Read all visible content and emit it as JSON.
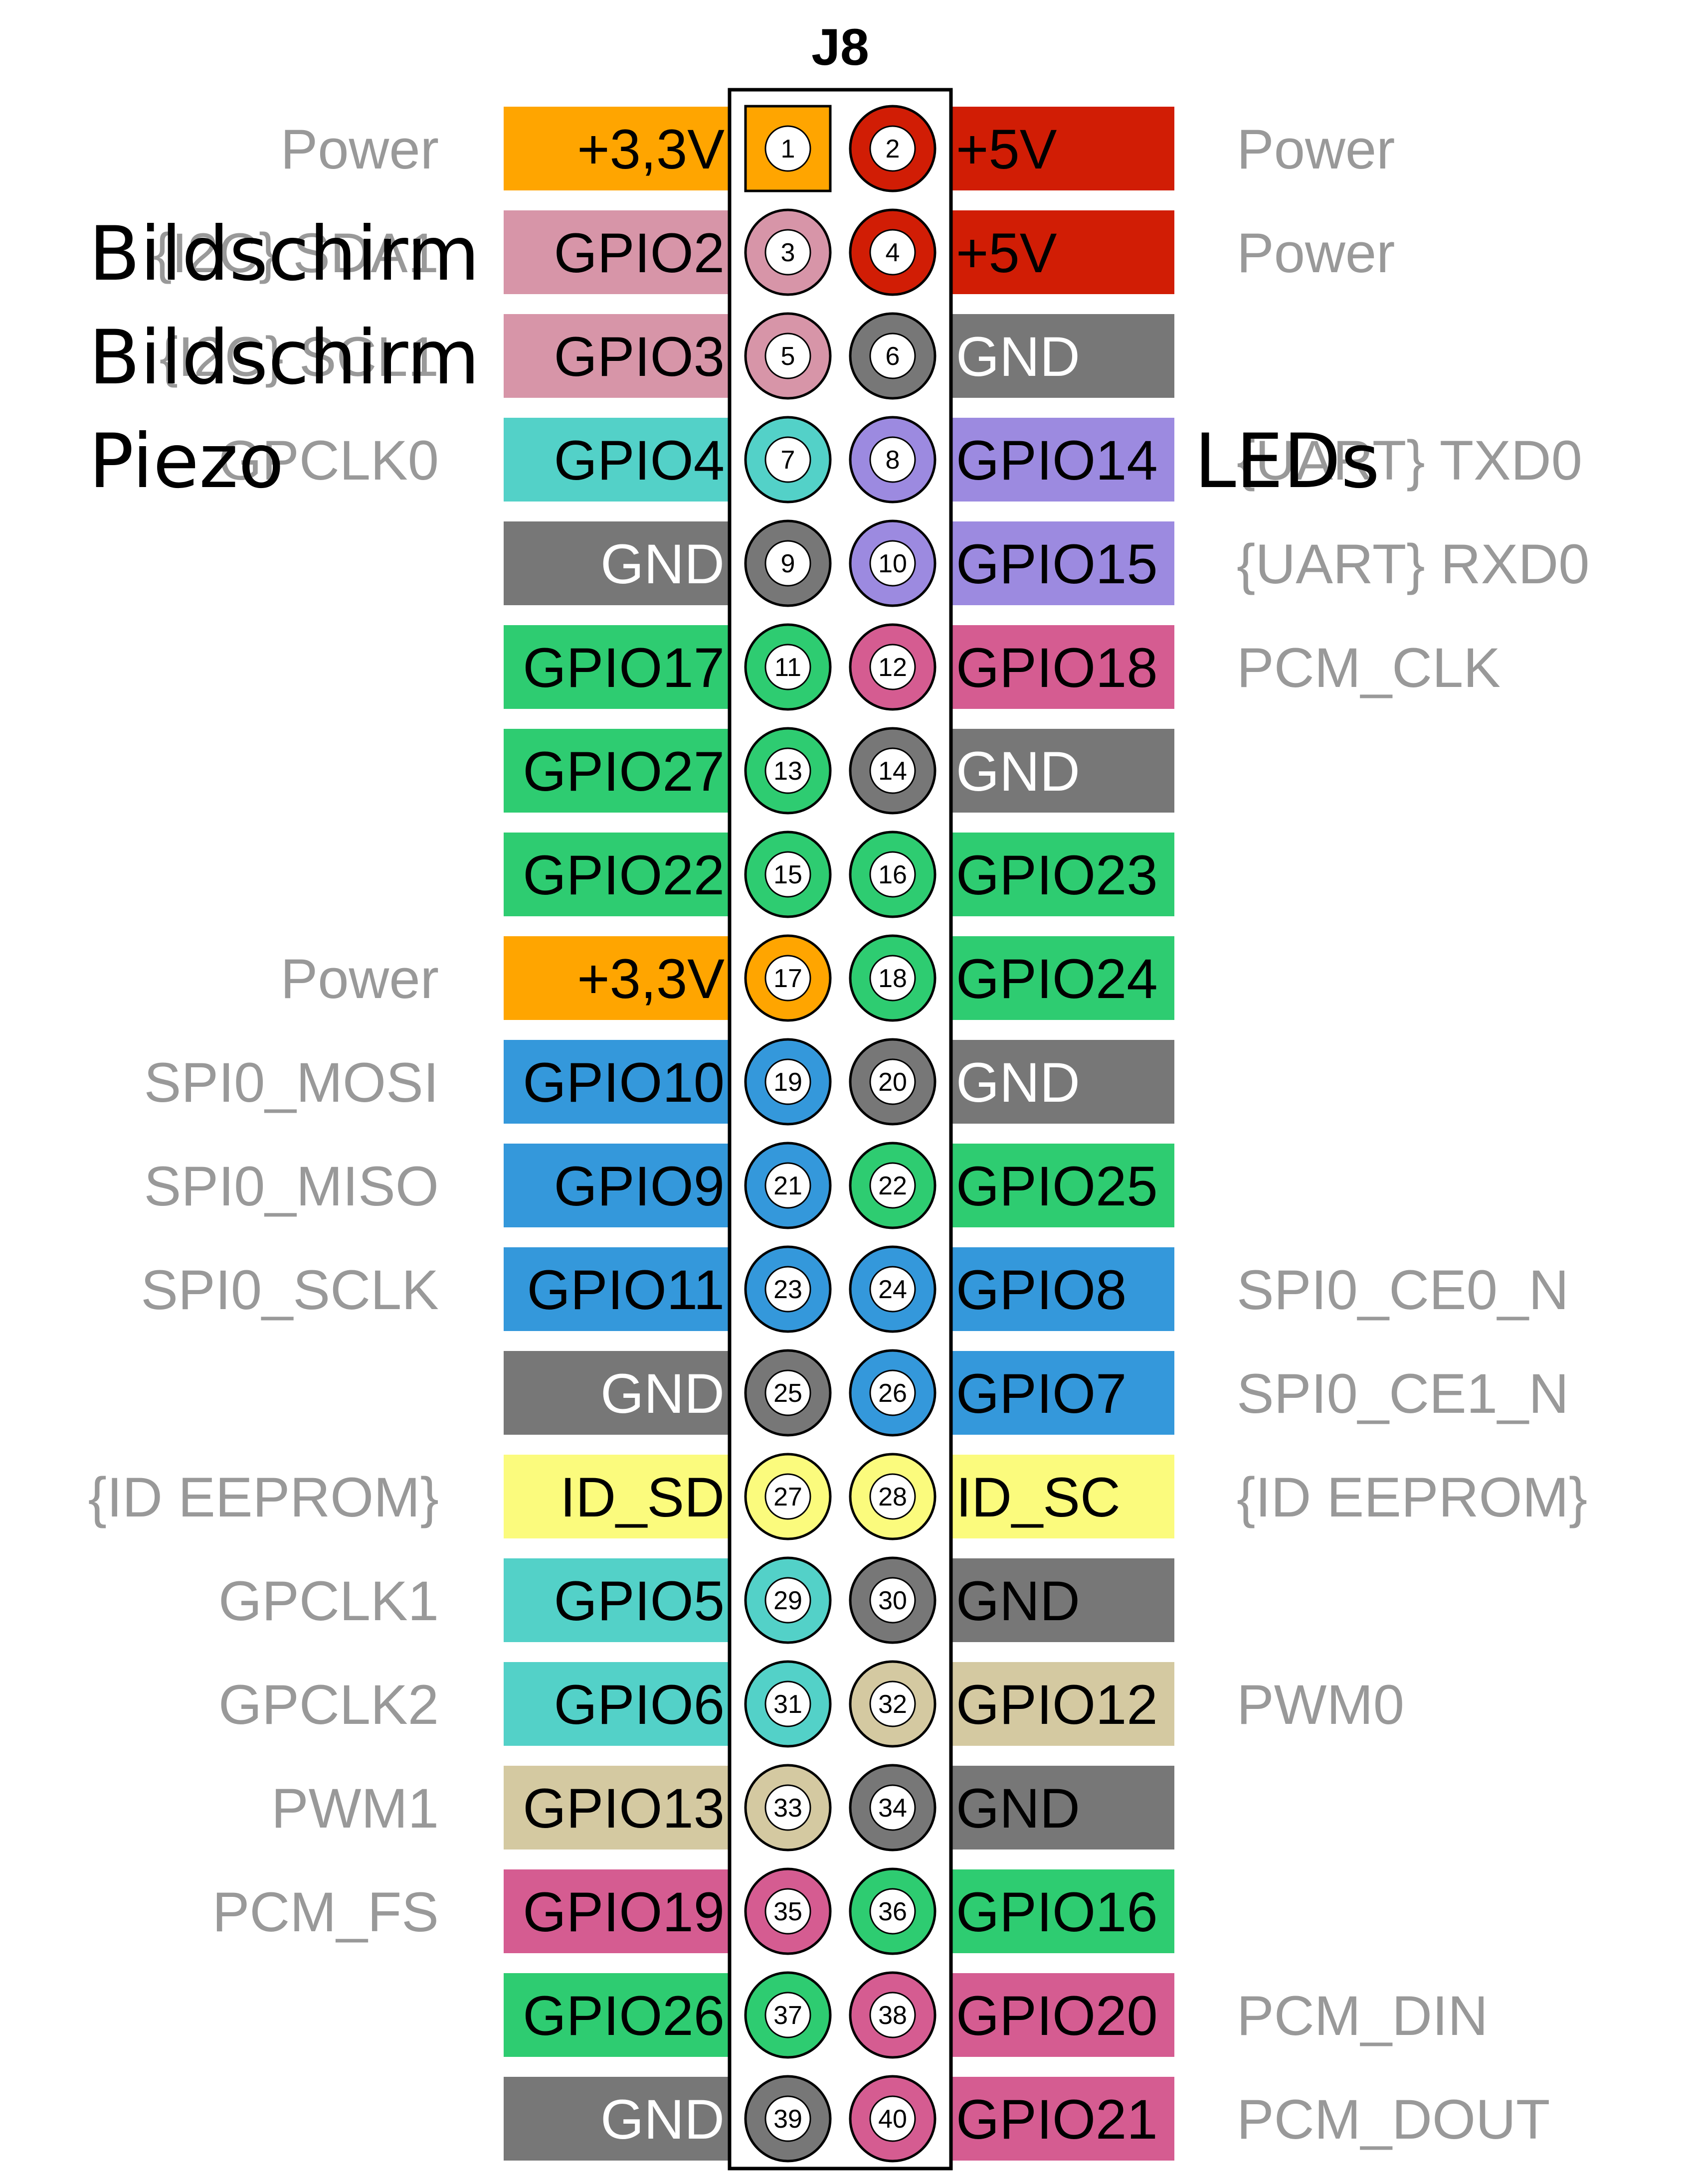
{
  "header": {
    "title": "J8"
  },
  "colors": {
    "power33": "#ffa500",
    "power5": "#d11d05",
    "gnd": "#777777",
    "gpio": "#2ecc71",
    "i2c": "#d795a8",
    "gpclk": "#53d1c8",
    "uart": "#9c8ae0",
    "pcm": "#d55c91",
    "spi": "#3498db",
    "eeprom": "#fbfb7d",
    "pwm": "#d4c9a1"
  },
  "pins": [
    {
      "number": "1",
      "side": "left",
      "label": "+3,3V",
      "function": "Power",
      "color": "power33",
      "label_color": "#000000",
      "square": true
    },
    {
      "number": "2",
      "side": "right",
      "label": "+5V",
      "function": "Power",
      "color": "power5",
      "label_color": "#000000"
    },
    {
      "number": "3",
      "side": "left",
      "label": "GPIO2",
      "function": "{I2C} SDA1",
      "color": "i2c",
      "label_color": "#000000"
    },
    {
      "number": "4",
      "side": "right",
      "label": "+5V",
      "function": "Power",
      "color": "power5",
      "label_color": "#000000"
    },
    {
      "number": "5",
      "side": "left",
      "label": "GPIO3",
      "function": "{I2C} SCL1",
      "color": "i2c",
      "label_color": "#000000"
    },
    {
      "number": "6",
      "side": "right",
      "label": "GND",
      "function": "",
      "color": "gnd",
      "label_color": "#ffffff"
    },
    {
      "number": "7",
      "side": "left",
      "label": "GPIO4",
      "function": "GPCLK0",
      "color": "gpclk",
      "label_color": "#000000"
    },
    {
      "number": "8",
      "side": "right",
      "label": "GPIO14",
      "function": "{UART} TXD0",
      "color": "uart",
      "label_color": "#000000"
    },
    {
      "number": "9",
      "side": "left",
      "label": "GND",
      "function": "",
      "color": "gnd",
      "label_color": "#ffffff"
    },
    {
      "number": "10",
      "side": "right",
      "label": "GPIO15",
      "function": "{UART} RXD0",
      "color": "uart",
      "label_color": "#000000"
    },
    {
      "number": "11",
      "side": "left",
      "label": "GPIO17",
      "function": "",
      "color": "gpio",
      "label_color": "#000000"
    },
    {
      "number": "12",
      "side": "right",
      "label": "GPIO18",
      "function": "PCM_CLK",
      "color": "pcm",
      "label_color": "#000000"
    },
    {
      "number": "13",
      "side": "left",
      "label": "GPIO27",
      "function": "",
      "color": "gpio",
      "label_color": "#000000"
    },
    {
      "number": "14",
      "side": "right",
      "label": "GND",
      "function": "",
      "color": "gnd",
      "label_color": "#ffffff"
    },
    {
      "number": "15",
      "side": "left",
      "label": "GPIO22",
      "function": "",
      "color": "gpio",
      "label_color": "#000000"
    },
    {
      "number": "16",
      "side": "right",
      "label": "GPIO23",
      "function": "",
      "color": "gpio",
      "label_color": "#000000"
    },
    {
      "number": "17",
      "side": "left",
      "label": "+3,3V",
      "function": "Power",
      "color": "power33",
      "label_color": "#000000"
    },
    {
      "number": "18",
      "side": "right",
      "label": "GPIO24",
      "function": "",
      "color": "gpio",
      "label_color": "#000000"
    },
    {
      "number": "19",
      "side": "left",
      "label": "GPIO10",
      "function": "SPI0_MOSI",
      "color": "spi",
      "label_color": "#000000"
    },
    {
      "number": "20",
      "side": "right",
      "label": "GND",
      "function": "",
      "color": "gnd",
      "label_color": "#ffffff"
    },
    {
      "number": "21",
      "side": "left",
      "label": "GPIO9",
      "function": "SPI0_MISO",
      "color": "spi",
      "label_color": "#000000"
    },
    {
      "number": "22",
      "side": "right",
      "label": "GPIO25",
      "function": "",
      "color": "gpio",
      "label_color": "#000000"
    },
    {
      "number": "23",
      "side": "left",
      "label": "GPIO11",
      "function": "SPI0_SCLK",
      "color": "spi",
      "label_color": "#000000"
    },
    {
      "number": "24",
      "side": "right",
      "label": "GPIO8",
      "function": "SPI0_CE0_N",
      "color": "spi",
      "label_color": "#000000"
    },
    {
      "number": "25",
      "side": "left",
      "label": "GND",
      "function": "",
      "color": "gnd",
      "label_color": "#ffffff"
    },
    {
      "number": "26",
      "side": "right",
      "label": "GPIO7",
      "function": "SPI0_CE1_N",
      "color": "spi",
      "label_color": "#000000"
    },
    {
      "number": "27",
      "side": "left",
      "label": "ID_SD",
      "function": "{ID EEPROM}",
      "color": "eeprom",
      "label_color": "#000000"
    },
    {
      "number": "28",
      "side": "right",
      "label": "ID_SC",
      "function": "{ID EEPROM}",
      "color": "eeprom",
      "label_color": "#000000"
    },
    {
      "number": "29",
      "side": "left",
      "label": "GPIO5",
      "function": "GPCLK1",
      "color": "gpclk",
      "label_color": "#000000"
    },
    {
      "number": "30",
      "side": "right",
      "label": "GND",
      "function": "",
      "color": "gnd",
      "label_color": "#000000"
    },
    {
      "number": "31",
      "side": "left",
      "label": "GPIO6",
      "function": "GPCLK2",
      "color": "gpclk",
      "label_color": "#000000"
    },
    {
      "number": "32",
      "side": "right",
      "label": "GPIO12",
      "function": "PWM0",
      "color": "pwm",
      "label_color": "#000000"
    },
    {
      "number": "33",
      "side": "left",
      "label": "GPIO13",
      "function": "PWM1",
      "color": "pwm",
      "label_color": "#000000"
    },
    {
      "number": "34",
      "side": "right",
      "label": "GND",
      "function": "",
      "color": "gnd",
      "label_color": "#000000"
    },
    {
      "number": "35",
      "side": "left",
      "label": "GPIO19",
      "function": "PCM_FS",
      "color": "pcm",
      "label_color": "#000000"
    },
    {
      "number": "36",
      "side": "right",
      "label": "GPIO16",
      "function": "",
      "color": "gpio",
      "label_color": "#000000"
    },
    {
      "number": "37",
      "side": "left",
      "label": "GPIO26",
      "function": "",
      "color": "gpio",
      "label_color": "#000000"
    },
    {
      "number": "38",
      "side": "right",
      "label": "GPIO20",
      "function": "PCM_DIN",
      "color": "pcm",
      "label_color": "#000000"
    },
    {
      "number": "39",
      "side": "left",
      "label": "GND",
      "function": "",
      "color": "gnd",
      "label_color": "#ffffff"
    },
    {
      "number": "40",
      "side": "right",
      "label": "GPIO21",
      "function": "PCM_DOUT",
      "color": "pcm",
      "label_color": "#000000"
    }
  ],
  "annotations": [
    {
      "text": "Bildschirm",
      "pin": "3"
    },
    {
      "text": "Bildschirm",
      "pin": "5"
    },
    {
      "text": "Piezo",
      "pin": "7"
    },
    {
      "text": "LEDs",
      "pin": "8"
    }
  ]
}
